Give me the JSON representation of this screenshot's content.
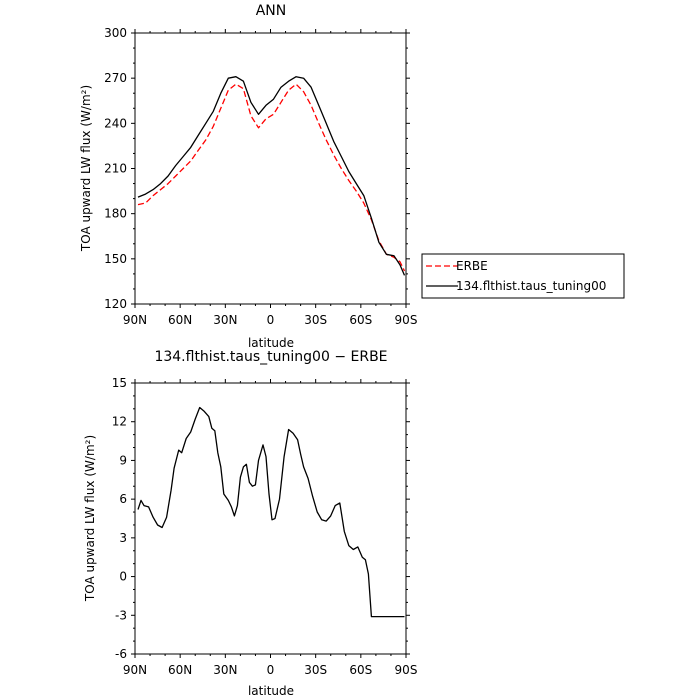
{
  "chart_data": [
    {
      "type": "line",
      "title": "ANN",
      "xlabel": "latitude",
      "ylabel": "TOA upward LW flux (W/m²)",
      "xlim": [
        90,
        -90
      ],
      "ylim": [
        120,
        300
      ],
      "x_ticks": [
        {
          "value": 90,
          "label": "90N"
        },
        {
          "value": 60,
          "label": "60N"
        },
        {
          "value": 30,
          "label": "30N"
        },
        {
          "value": 0,
          "label": "0"
        },
        {
          "value": -30,
          "label": "30S"
        },
        {
          "value": -60,
          "label": "60S"
        },
        {
          "value": -90,
          "label": "90S"
        }
      ],
      "y_ticks": [
        120,
        150,
        180,
        210,
        240,
        270,
        300
      ],
      "legend_placement": "right",
      "series": [
        {
          "name": "ERBE",
          "color": "#ff0000",
          "dash": "dashed",
          "x": [
            88,
            83,
            78,
            73,
            68,
            63,
            58,
            53,
            48,
            43,
            38,
            33,
            28,
            23,
            18,
            13,
            8,
            3,
            -2,
            -7,
            -12,
            -17,
            -22,
            -27,
            -32,
            -37,
            -42,
            -47,
            -52,
            -57,
            -62,
            -67,
            -72,
            -77,
            -82,
            -86,
            -89
          ],
          "y": [
            186,
            187,
            192,
            196,
            200,
            205,
            210,
            215,
            222,
            229,
            238,
            250,
            262,
            266,
            263,
            245,
            237,
            243,
            246,
            254,
            262,
            266,
            261,
            252,
            240,
            229,
            219,
            210,
            202,
            195,
            187,
            176,
            162,
            153,
            151,
            148,
            142
          ]
        },
        {
          "name": "134.flthist.taus_tuning00",
          "color": "#000000",
          "dash": "solid",
          "x": [
            88,
            83,
            78,
            73,
            68,
            63,
            58,
            53,
            48,
            43,
            38,
            33,
            28,
            23,
            18,
            13,
            8,
            3,
            -2,
            -7,
            -12,
            -17,
            -22,
            -27,
            -32,
            -37,
            -42,
            -47,
            -52,
            -57,
            -62,
            -67,
            -72,
            -77,
            -82,
            -86,
            -89
          ],
          "y": [
            191,
            193,
            196,
            200,
            205,
            212,
            218,
            224,
            232,
            240,
            248,
            260,
            270,
            271,
            268,
            254,
            246,
            252,
            256,
            264,
            268,
            271,
            270,
            264,
            252,
            240,
            228,
            218,
            208,
            200,
            192,
            177,
            161,
            153,
            152,
            146,
            139
          ]
        }
      ]
    },
    {
      "type": "line",
      "title": "134.flthist.taus_tuning00 − ERBE",
      "xlabel": "latitude",
      "ylabel": "TOA upward LW flux (W/m²)",
      "xlim": [
        90,
        -90
      ],
      "ylim": [
        -6,
        15
      ],
      "x_ticks": [
        {
          "value": 90,
          "label": "90N"
        },
        {
          "value": 60,
          "label": "60N"
        },
        {
          "value": 30,
          "label": "30N"
        },
        {
          "value": 0,
          "label": "0"
        },
        {
          "value": -30,
          "label": "30S"
        },
        {
          "value": -60,
          "label": "60S"
        },
        {
          "value": -90,
          "label": "90S"
        }
      ],
      "y_ticks": [
        -6,
        -3,
        0,
        3,
        6,
        9,
        12,
        15
      ],
      "series": [
        {
          "color": "#000000",
          "dash": "solid",
          "x": [
            88,
            86,
            84,
            81,
            78,
            75,
            72,
            69,
            66,
            64,
            61,
            59,
            56,
            53,
            50,
            47,
            44,
            41,
            39,
            37,
            35,
            33,
            31,
            28,
            26,
            24,
            22,
            20,
            18,
            16,
            14,
            12,
            10,
            8,
            5,
            3,
            1,
            -1,
            -3,
            -6,
            -9,
            -12,
            -15,
            -18,
            -20,
            -22,
            -25,
            -28,
            -31,
            -34,
            -37,
            -40,
            -43,
            -46,
            -49,
            -52,
            -55,
            -58,
            -61,
            -63,
            -65,
            -67,
            -69,
            -71,
            -73,
            -75,
            -77,
            -79,
            -81,
            -83,
            -85,
            -86,
            -88,
            -89
          ],
          "y": [
            5.2,
            5.9,
            5.5,
            5.4,
            4.6,
            4.0,
            3.8,
            4.6,
            6.7,
            8.4,
            9.8,
            9.6,
            10.7,
            11.2,
            12.2,
            13.1,
            12.8,
            12.4,
            11.5,
            11.3,
            9.6,
            8.5,
            6.4,
            5.9,
            5.4,
            4.7,
            5.5,
            7.7,
            8.5,
            8.7,
            7.3,
            7.0,
            7.1,
            9.0,
            10.2,
            9.3,
            6.4,
            4.4,
            4.5,
            6.0,
            9.3,
            11.4,
            11.1,
            10.6,
            9.5,
            8.5,
            7.6,
            6.2,
            5.0,
            4.4,
            4.3,
            4.7,
            5.5,
            5.7,
            3.5,
            2.4,
            2.1,
            2.3,
            1.5,
            1.3,
            0.2,
            -3.1,
            -3.1,
            -3.1,
            -3.1,
            -3.1,
            -3.1,
            -3.1,
            -3.1,
            -3.1,
            -3.1,
            -3.1,
            -3.1,
            -3.1
          ]
        }
      ]
    }
  ]
}
